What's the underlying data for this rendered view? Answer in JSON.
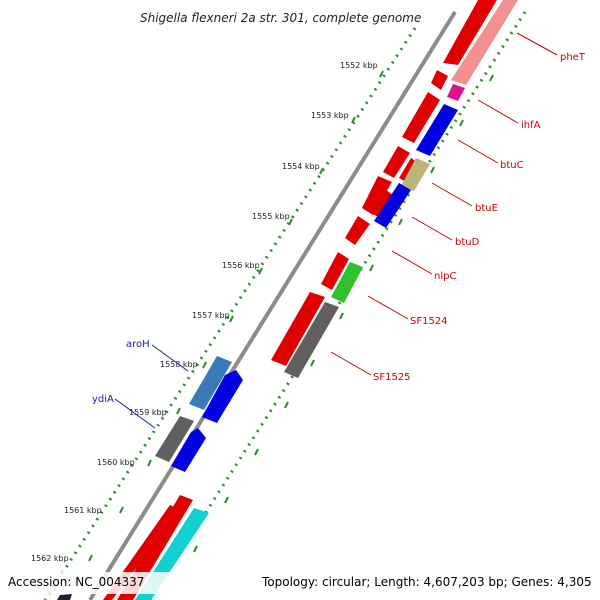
{
  "title": "Shigella flexneri 2a str. 301, complete genome",
  "footer": {
    "accession": "Accession: NC_004337",
    "summary": "Topology: circular; Length: 4,607,203 bp; Genes: 4,305"
  },
  "colors": {
    "backbone": "#8c8c8c",
    "dots": "#2e8b2e",
    "forward_label": "#cc0000",
    "reverse_label": "#1a1acc"
  },
  "ticks": [
    "1552 kbp",
    "1553 kbp",
    "1554 kbp",
    "1555 kbp",
    "1556 kbp",
    "1557 kbp",
    "1558 kbp",
    "1559 kbp",
    "1560 kbp",
    "1561 kbp",
    "1562 kbp"
  ],
  "gene_labels": [
    {
      "text": "pheT",
      "strand": "right"
    },
    {
      "text": "ihfA",
      "strand": "right"
    },
    {
      "text": "btuC",
      "strand": "right"
    },
    {
      "text": "btuE",
      "strand": "right"
    },
    {
      "text": "btuD",
      "strand": "right"
    },
    {
      "text": "nlpC",
      "strand": "right"
    },
    {
      "text": "SF1524",
      "strand": "right"
    },
    {
      "text": "SF1525",
      "strand": "right"
    },
    {
      "text": "aroH",
      "strand": "left"
    },
    {
      "text": "ydiA",
      "strand": "left"
    }
  ]
}
